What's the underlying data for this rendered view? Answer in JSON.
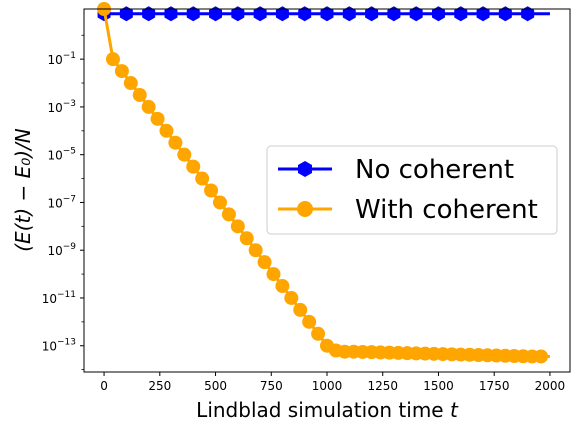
{
  "chart_data": {
    "type": "line",
    "xlabel_main": "Lindblad simulation time ",
    "xlabel_var": "t",
    "ylabel": "(E(t) − E₀)/N",
    "xlim": [
      -90,
      2090
    ],
    "ylim_log10": [
      -14.1,
      1.1
    ],
    "yscale": "log",
    "x_ticks": [
      0,
      250,
      500,
      750,
      1000,
      1250,
      1500,
      1750,
      2000
    ],
    "x_tick_labels": [
      "0",
      "250",
      "500",
      "750",
      "1000",
      "1250",
      "1500",
      "1750",
      "2000"
    ],
    "y_tick_exponents": [
      -1,
      -3,
      -5,
      -7,
      -9,
      -11,
      -13
    ],
    "y_tick_labels": [
      {
        "base": "10",
        "exp": "−1"
      },
      {
        "base": "10",
        "exp": "−3"
      },
      {
        "base": "10",
        "exp": "−5"
      },
      {
        "base": "10",
        "exp": "−7"
      },
      {
        "base": "10",
        "exp": "−9"
      },
      {
        "base": "10",
        "exp": "−11"
      },
      {
        "base": "10",
        "exp": "−13"
      }
    ],
    "grid": false,
    "legend_position": "center-right",
    "series": [
      {
        "name": "No coherent",
        "color": "#0000ff",
        "marker": "hexagon",
        "line": {
          "x": [
            0,
            2000
          ],
          "log10_y": [
            0.9,
            0.9
          ]
        },
        "markers": {
          "x": [
            0,
            100,
            200,
            300,
            400,
            500,
            600,
            700,
            800,
            900,
            1000,
            1100,
            1200,
            1300,
            1400,
            1500,
            1600,
            1700,
            1800,
            1900
          ],
          "log10_y": [
            0.9,
            0.9,
            0.9,
            0.9,
            0.9,
            0.9,
            0.9,
            0.9,
            0.9,
            0.9,
            0.9,
            0.9,
            0.9,
            0.9,
            0.9,
            0.9,
            0.9,
            0.9,
            0.9,
            0.9
          ]
        }
      },
      {
        "name": "With coherent",
        "color": "#ffa500",
        "marker": "circle",
        "line": {
          "x": [
            0,
            40,
            80,
            120,
            160,
            200,
            240,
            280,
            320,
            360,
            400,
            440,
            480,
            520,
            560,
            600,
            640,
            680,
            720,
            760,
            800,
            840,
            880,
            920,
            960,
            1000,
            1040,
            1080,
            1120,
            1160,
            1200,
            1240,
            1280,
            1320,
            1360,
            1400,
            1440,
            1480,
            1520,
            1560,
            1600,
            1640,
            1680,
            1720,
            1760,
            1800,
            1840,
            1880,
            1920,
            1960,
            2000
          ],
          "log10_y": [
            1.1,
            -1.0,
            -1.5,
            -2.0,
            -2.5,
            -3.0,
            -3.5,
            -4.0,
            -4.5,
            -5.0,
            -5.5,
            -6.0,
            -6.5,
            -7.0,
            -7.5,
            -8.0,
            -8.5,
            -9.0,
            -9.5,
            -10.0,
            -10.5,
            -11.0,
            -11.5,
            -12.0,
            -12.5,
            -13.0,
            -13.2,
            -13.25,
            -13.25,
            -13.26,
            -13.27,
            -13.28,
            -13.29,
            -13.3,
            -13.31,
            -13.32,
            -13.33,
            -13.34,
            -13.35,
            -13.36,
            -13.37,
            -13.38,
            -13.39,
            -13.4,
            -13.41,
            -13.42,
            -13.43,
            -13.44,
            -13.45,
            -13.45,
            -13.45
          ]
        },
        "markers": {
          "x": [
            0,
            40,
            80,
            120,
            160,
            200,
            240,
            280,
            320,
            360,
            400,
            440,
            480,
            520,
            560,
            600,
            640,
            680,
            720,
            760,
            800,
            840,
            880,
            920,
            960,
            1000,
            1040,
            1080,
            1120,
            1160,
            1200,
            1240,
            1280,
            1320,
            1360,
            1400,
            1440,
            1480,
            1520,
            1560,
            1600,
            1640,
            1680,
            1720,
            1760,
            1800,
            1840,
            1880,
            1920,
            1960
          ],
          "log10_y": [
            1.1,
            -1.0,
            -1.5,
            -2.0,
            -2.5,
            -3.0,
            -3.5,
            -4.0,
            -4.5,
            -5.0,
            -5.5,
            -6.0,
            -6.5,
            -7.0,
            -7.5,
            -8.0,
            -8.5,
            -9.0,
            -9.5,
            -10.0,
            -10.5,
            -11.0,
            -11.5,
            -12.0,
            -12.5,
            -13.0,
            -13.2,
            -13.25,
            -13.25,
            -13.26,
            -13.27,
            -13.28,
            -13.29,
            -13.3,
            -13.31,
            -13.32,
            -13.33,
            -13.34,
            -13.35,
            -13.36,
            -13.37,
            -13.38,
            -13.39,
            -13.4,
            -13.41,
            -13.42,
            -13.43,
            -13.44,
            -13.45,
            -13.45
          ]
        }
      }
    ]
  }
}
